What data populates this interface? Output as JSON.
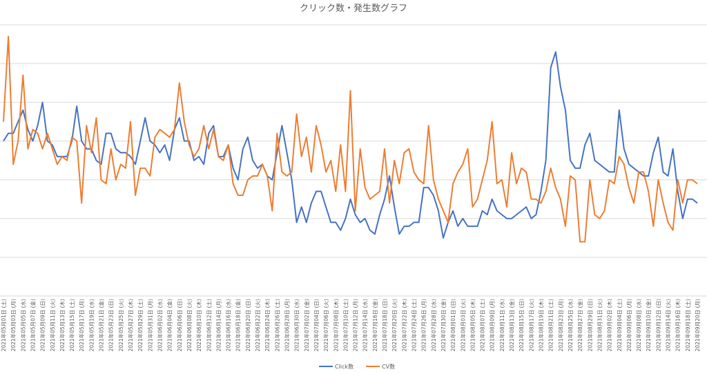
{
  "chart_data": {
    "type": "line",
    "title": "クリック数・発生数グラフ",
    "categories": [
      "2021年05月01日 (土)",
      null,
      "2021年05月03日 (月)",
      null,
      "2021年05月05日 (水)",
      null,
      "2021年05月07日 (金)",
      null,
      "2021年05月09日 (日)",
      null,
      "2021年05月11日 (火)",
      null,
      "2021年05月13日 (木)",
      null,
      "2021年05月15日 (土)",
      null,
      "2021年05月17日 (月)",
      null,
      "2021年05月19日 (水)",
      null,
      "2021年05月21日 (金)",
      null,
      "2021年05月23日 (日)",
      null,
      "2021年05月25日 (火)",
      null,
      "2021年05月27日 (木)",
      null,
      "2021年05月29日 (土)",
      null,
      "2021年05月31日 (月)",
      null,
      "2021年06月02日 (水)",
      null,
      "2021年06月04日 (金)",
      null,
      "2021年06月06日 (日)",
      null,
      "2021年06月08日 (火)",
      null,
      "2021年06月10日 (木)",
      null,
      "2021年06月12日 (土)",
      null,
      "2021年06月14日 (月)",
      null,
      "2021年06月16日 (水)",
      null,
      "2021年06月18日 (金)",
      null,
      "2021年06月20日 (日)",
      null,
      "2021年06月22日 (火)",
      null,
      "2021年06月24日 (木)",
      null,
      "2021年06月26日 (土)",
      null,
      "2021年06月28日 (月)",
      null,
      "2021年06月30日 (水)",
      null,
      "2021年07月02日 (金)",
      null,
      "2021年07月04日 (日)",
      null,
      "2021年07月06日 (火)",
      null,
      "2021年07月08日 (木)",
      null,
      "2021年07月10日 (土)",
      null,
      "2021年07月12日 (月)",
      null,
      "2021年07月14日 (水)",
      null,
      "2021年07月16日 (金)",
      null,
      "2021年07月18日 (日)",
      null,
      "2021年07月20日 (火)",
      null,
      "2021年07月22日 (木)",
      null,
      "2021年07月24日 (土)",
      null,
      "2021年07月26日 (月)",
      null,
      "2021年07月28日 (水)",
      null,
      "2021年07月30日 (金)",
      null,
      "2021年08月01日 (日)",
      null,
      "2021年08月03日 (火)",
      null,
      "2021年08月05日 (木)",
      null,
      "2021年08月07日 (土)",
      null,
      "2021年08月09日 (月)",
      null,
      "2021年08月11日 (水)",
      null,
      "2021年08月13日 (金)",
      null,
      "2021年08月15日 (日)",
      null,
      "2021年08月17日 (火)",
      null,
      "2021年08月19日 (木)",
      null,
      "2021年08月21日 (土)",
      null,
      "2021年08月23日 (月)",
      null,
      "2021年08月25日 (水)",
      null,
      "2021年08月27日 (金)",
      null,
      "2021年08月29日 (日)",
      null,
      "2021年08月31日 (火)",
      null,
      "2021年09月02日 (木)",
      null,
      "2021年09月04日 (土)",
      null,
      "2021年09月06日 (月)",
      null,
      "2021年09月08日 (水)",
      null,
      "2021年09月10日 (金)",
      null,
      "2021年09月12日 (日)",
      null,
      "2021年09月14日 (火)",
      null,
      "2021年09月16日 (木)",
      null,
      "2021年09月18日 (土)",
      null,
      "2021年09月20日 (月)"
    ],
    "series": [
      {
        "name": "Click数",
        "color": "#4472c4",
        "values": [
          4.0,
          4.2,
          4.2,
          4.5,
          4.8,
          4.3,
          4.0,
          4.4,
          5.0,
          4.0,
          3.9,
          3.6,
          3.6,
          3.6,
          4.0,
          4.9,
          4.0,
          3.8,
          3.8,
          3.5,
          3.4,
          4.2,
          4.2,
          3.8,
          3.7,
          3.7,
          3.6,
          3.4,
          4.0,
          4.6,
          4.0,
          3.9,
          3.7,
          3.9,
          3.5,
          4.3,
          4.6,
          4.0,
          4.0,
          3.5,
          3.6,
          3.4,
          4.2,
          4.4,
          3.6,
          3.6,
          3.9,
          3.3,
          3.0,
          3.8,
          4.1,
          3.5,
          3.3,
          3.4,
          3.1,
          3.0,
          3.7,
          4.4,
          3.7,
          3.0,
          1.9,
          2.3,
          1.9,
          2.4,
          2.7,
          2.7,
          2.3,
          1.9,
          1.9,
          1.7,
          2.0,
          2.5,
          2.1,
          1.9,
          2.0,
          1.7,
          1.6,
          2.1,
          2.5,
          3.1,
          2.3,
          1.6,
          1.8,
          1.8,
          1.9,
          1.9,
          2.8,
          2.8,
          2.6,
          2.2,
          1.5,
          1.9,
          2.2,
          1.8,
          2.0,
          1.8,
          1.8,
          1.8,
          2.2,
          2.1,
          2.5,
          2.2,
          2.1,
          2.0,
          2.0,
          2.1,
          2.2,
          2.3,
          2.0,
          2.1,
          2.7,
          3.5,
          5.9,
          6.3,
          5.4,
          4.8,
          3.5,
          3.3,
          3.3,
          3.9,
          4.2,
          3.5,
          3.4,
          3.3,
          3.2,
          3.2,
          4.8,
          3.8,
          3.4,
          3.3,
          3.2,
          3.1,
          3.1,
          3.7,
          4.1,
          3.2,
          3.1,
          3.8,
          2.7,
          2.0,
          2.5,
          2.5,
          2.4
        ]
      },
      {
        "name": "CV数",
        "color": "#ed7d31",
        "values": [
          4.5,
          6.7,
          3.4,
          4.0,
          5.7,
          3.8,
          4.3,
          4.2,
          3.8,
          4.2,
          3.8,
          3.4,
          3.6,
          3.5,
          4.1,
          4.0,
          2.4,
          4.4,
          3.7,
          4.6,
          3.0,
          2.9,
          3.8,
          3.0,
          3.4,
          3.3,
          4.5,
          2.6,
          3.3,
          3.3,
          3.1,
          4.1,
          4.3,
          4.2,
          4.1,
          4.3,
          5.5,
          4.5,
          3.9,
          3.6,
          3.8,
          4.4,
          3.8,
          4.3,
          3.6,
          3.5,
          3.9,
          2.9,
          2.6,
          2.6,
          3.0,
          3.1,
          3.1,
          3.4,
          3.1,
          2.2,
          4.2,
          3.2,
          3.1,
          3.2,
          4.7,
          3.6,
          4.1,
          3.2,
          4.4,
          3.9,
          3.2,
          3.5,
          2.7,
          3.9,
          2.7,
          5.3,
          2.2,
          3.8,
          2.8,
          2.5,
          2.6,
          2.7,
          3.8,
          2.4,
          3.5,
          2.9,
          3.7,
          3.8,
          3.2,
          3.0,
          2.9,
          4.4,
          3.0,
          2.5,
          2.2,
          1.9,
          2.9,
          3.2,
          3.4,
          3.8,
          2.3,
          2.5,
          3.0,
          3.5,
          4.5,
          2.9,
          3.0,
          2.3,
          3.7,
          2.9,
          3.3,
          3.2,
          2.5,
          2.5,
          2.4,
          2.7,
          3.3,
          2.8,
          2.5,
          1.8,
          3.1,
          3.0,
          1.4,
          1.4,
          3.0,
          2.1,
          2.0,
          2.2,
          3.0,
          2.9,
          3.6,
          3.4,
          2.8,
          2.4,
          3.2,
          3.2,
          2.7,
          1.8,
          3.0,
          2.4,
          1.9,
          1.7,
          3.0,
          2.4,
          3.0,
          3.0,
          2.9
        ]
      }
    ],
    "ylim": [
      0,
      7
    ],
    "yticks": [
      0,
      1,
      2,
      3,
      4,
      5,
      6,
      7
    ],
    "grid": true,
    "show_ytick_labels": false,
    "legend": "bottom"
  }
}
